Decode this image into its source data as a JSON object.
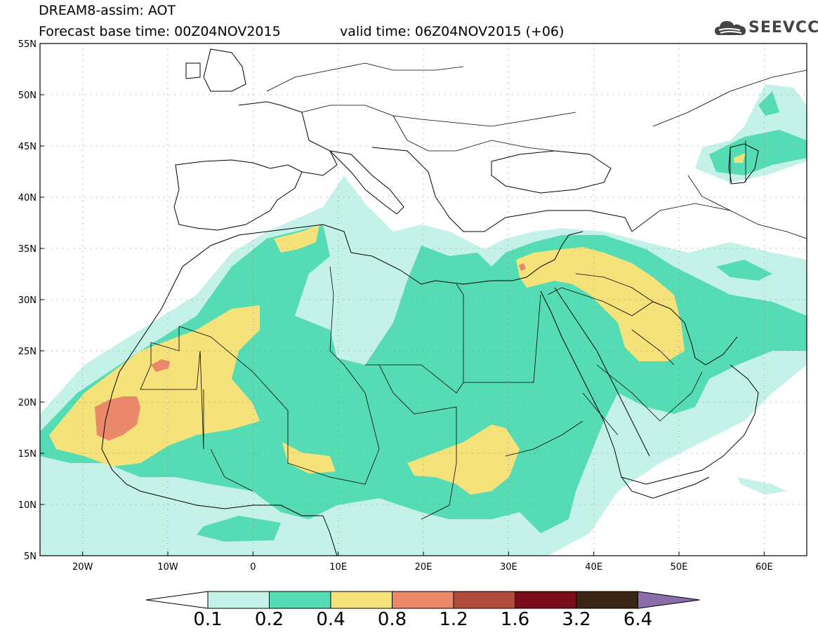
{
  "header": {
    "title": "DREAM8-assim: AOT",
    "base_time": "Forecast base time: 00Z04NOV2015",
    "valid_time": "valid time: 06Z04NOV2015 (+06)"
  },
  "logo": {
    "text": "SEEVCCC",
    "icon": "cloud-icon"
  },
  "map": {
    "lat_labels": [
      "55N",
      "50N",
      "45N",
      "40N",
      "35N",
      "30N",
      "25N",
      "20N",
      "15N",
      "10N",
      "5N"
    ],
    "lon_labels": [
      "20W",
      "10W",
      "0",
      "10E",
      "20E",
      "30E",
      "40E",
      "50E",
      "60E"
    ],
    "lat_range": [
      5,
      55
    ],
    "lon_range": [
      -25,
      65
    ],
    "grid": "dotted"
  },
  "colorbar": {
    "labels": [
      "0.1",
      "0.2",
      "0.4",
      "0.8",
      "1.2",
      "1.6",
      "3.2",
      "6.4"
    ],
    "colors": [
      "#c5f2e8",
      "#55dcb4",
      "#f6e27a",
      "#e9896a",
      "#b04b3e",
      "#7a0d1a",
      "#3a2414"
    ],
    "low_color": "#ffffff",
    "high_color": "#8c6cab"
  },
  "colors": {
    "c01": "#c5f2e8",
    "c02": "#55dcb4",
    "c04": "#f6e27a",
    "c08": "#e9896a"
  }
}
